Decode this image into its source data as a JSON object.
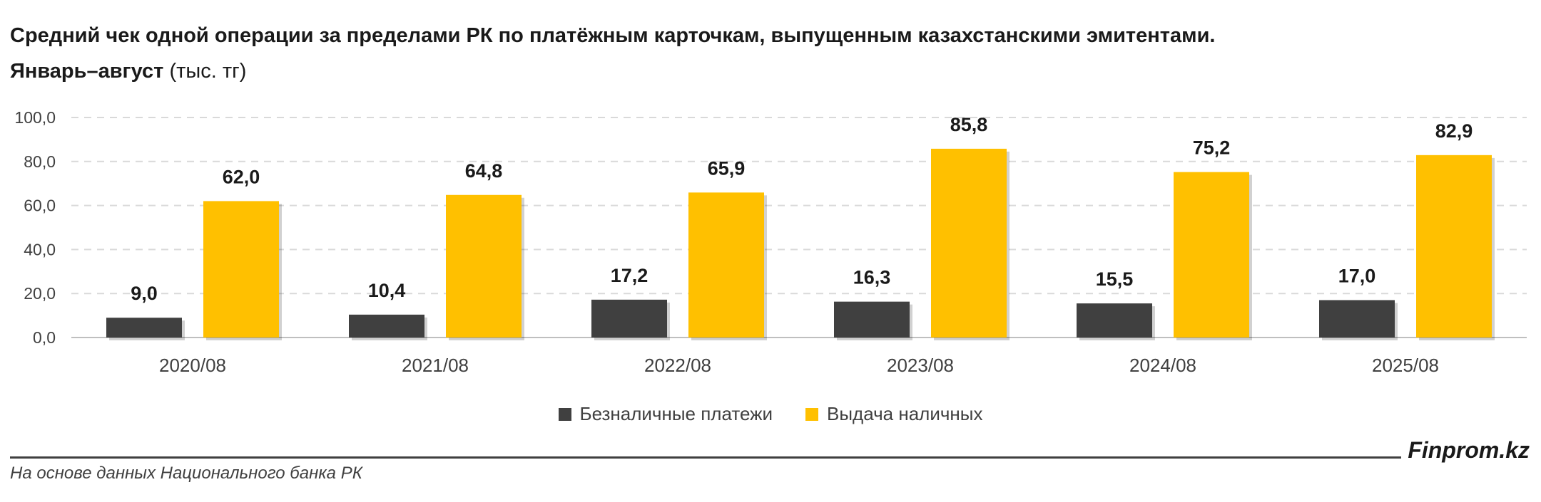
{
  "title": {
    "line1": "Средний чек одной операции за пределами РК по платёжным карточкам, выпущенным казахстанскими эмитентами.",
    "line2_bold": "Январь–август",
    "line2_rest": " (тыс. тг)"
  },
  "chart_data": {
    "type": "bar",
    "categories": [
      "2020/08",
      "2021/08",
      "2022/08",
      "2023/08",
      "2024/08",
      "2025/08"
    ],
    "series": [
      {
        "name": "Безналичные платежи",
        "values": [
          9.0,
          10.4,
          17.2,
          16.3,
          15.5,
          17.0
        ],
        "color": "#404040"
      },
      {
        "name": "Выдача наличных",
        "values": [
          62.0,
          64.8,
          65.9,
          85.8,
          75.2,
          82.9
        ],
        "color": "#FFC000"
      }
    ],
    "data_labels": [
      [
        "9,0",
        "10,4",
        "17,2",
        "16,3",
        "15,5",
        "17,0"
      ],
      [
        "62,0",
        "64,8",
        "65,9",
        "85,8",
        "75,2",
        "82,9"
      ]
    ],
    "yticks": [
      "0,0",
      "20,0",
      "40,0",
      "60,0",
      "80,0",
      "100,0"
    ],
    "ylim": [
      0,
      100
    ],
    "grid": true,
    "legend_position": "bottom"
  },
  "legend": [
    {
      "label": "Безналичные платежи",
      "color": "#404040"
    },
    {
      "label": "Выдача наличных",
      "color": "#FFC000"
    }
  ],
  "footer": {
    "brand": "Finprom.kz",
    "source": "На основе данных Национального банка РК"
  }
}
